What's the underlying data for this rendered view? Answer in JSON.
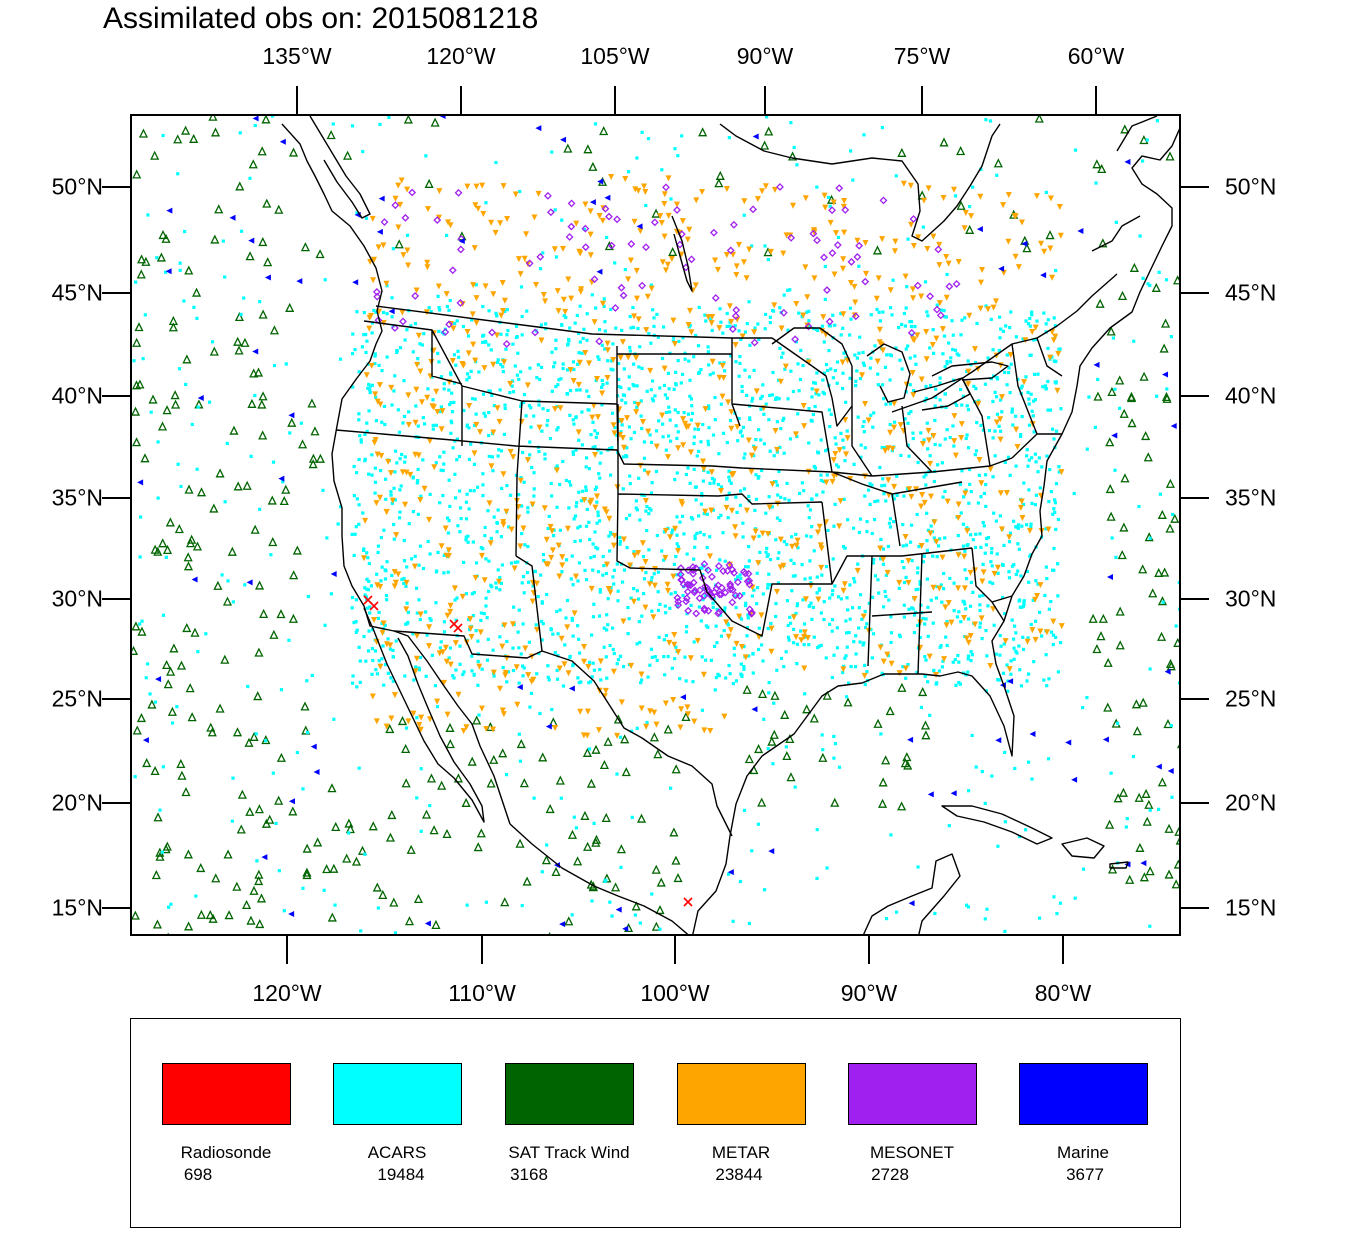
{
  "title": "Assimilated obs on: 2015081218",
  "axes": {
    "top_lon_labels": [
      "135°W",
      "120°W",
      "105°W",
      "90°W",
      "75°W",
      "60°W"
    ],
    "bottom_lon_labels": [
      "120°W",
      "110°W",
      "100°W",
      "90°W",
      "80°W"
    ],
    "left_lat_labels": [
      "50°N",
      "45°N",
      "40°N",
      "35°N",
      "30°N",
      "25°N",
      "20°N",
      "15°N"
    ],
    "right_lat_labels": [
      "50°N",
      "45°N",
      "40°N",
      "35°N",
      "30°N",
      "25°N",
      "20°N",
      "15°N"
    ]
  },
  "legend": {
    "items": [
      {
        "name": "Radiosonde",
        "count": "698",
        "color": "#ff0000",
        "marker": "x-cross"
      },
      {
        "name": "ACARS",
        "count": "19484",
        "color": "#00ffff",
        "marker": "square-dot"
      },
      {
        "name": "SAT Track Wind",
        "count": "3168",
        "color": "#006400",
        "marker": "triangle-up-outline"
      },
      {
        "name": "METAR",
        "count": "23844",
        "color": "#ffa500",
        "marker": "triangle-down"
      },
      {
        "name": "MESONET",
        "count": "2728",
        "color": "#a020f0",
        "marker": "diamond"
      },
      {
        "name": "Marine",
        "count": "3677",
        "color": "#0000ff",
        "marker": "triangle-left"
      }
    ]
  },
  "colors": {
    "radiosonde": "#ff0000",
    "acars": "#00ffff",
    "sat_track_wind": "#006400",
    "metar": "#ffa500",
    "mesonet": "#a020f0",
    "marine": "#0000ff",
    "coastline": "#000000"
  }
}
